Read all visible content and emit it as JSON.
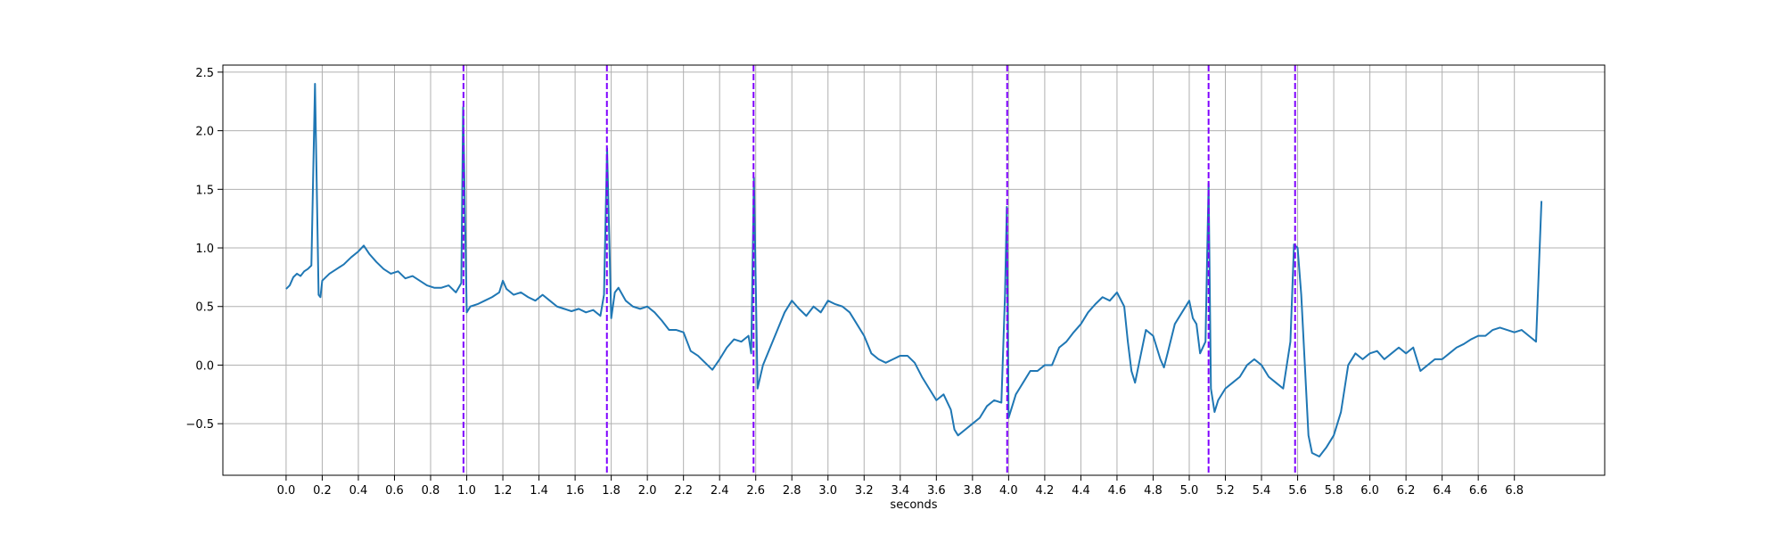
{
  "chart_data": {
    "type": "line",
    "xlabel": "seconds",
    "color": "#1f77b4",
    "grid": true,
    "xlim": [
      -0.35,
      7.3
    ],
    "ylim": [
      -0.94,
      2.56
    ],
    "xticks": [
      {
        "value": 0,
        "label": "0.0"
      },
      0.2,
      0.4,
      0.6,
      0.8,
      {
        "value": 1,
        "label": "1.0"
      },
      1.2,
      1.4,
      1.6,
      1.8,
      {
        "value": 2,
        "label": "2.0"
      },
      2.2,
      2.4,
      2.6,
      2.8,
      {
        "value": 3,
        "label": "3.0"
      },
      3.2,
      3.4,
      3.6,
      3.8,
      {
        "value": 4,
        "label": "4.0"
      },
      4.2,
      4.4,
      4.6,
      4.8,
      {
        "value": 5,
        "label": "5.0"
      },
      5.2,
      5.4,
      5.6,
      5.8,
      {
        "value": 6,
        "label": "6.0"
      },
      6.2,
      6.4,
      6.6,
      6.8
    ],
    "yticks": [
      {
        "value": -0.5,
        "label": "−0.5"
      },
      {
        "value": 0,
        "label": "0.0"
      },
      0.5,
      {
        "value": 1,
        "label": "1.0"
      },
      1.5,
      {
        "value": 2,
        "label": "2.0"
      },
      2.5
    ],
    "vlines": {
      "x": [
        0.982,
        1.776,
        2.588,
        3.992,
        5.107,
        5.586
      ],
      "color": "#7f00ff"
    },
    "x": [
      0,
      0.02,
      0.04,
      0.06,
      0.08,
      0.1,
      0.12,
      0.14,
      0.16,
      0.18,
      0.19,
      0.2,
      0.24,
      0.28,
      0.32,
      0.36,
      0.4,
      0.43,
      0.46,
      0.5,
      0.54,
      0.58,
      0.62,
      0.66,
      0.7,
      0.74,
      0.78,
      0.82,
      0.86,
      0.9,
      0.94,
      0.97,
      0.98,
      1,
      1.02,
      1.06,
      1.1,
      1.14,
      1.18,
      1.2,
      1.22,
      1.26,
      1.3,
      1.34,
      1.38,
      1.42,
      1.46,
      1.5,
      1.54,
      1.58,
      1.62,
      1.66,
      1.7,
      1.74,
      1.76,
      1.777,
      1.8,
      1.82,
      1.84,
      1.88,
      1.92,
      1.96,
      2,
      2.04,
      2.08,
      2.12,
      2.16,
      2.2,
      2.24,
      2.28,
      2.32,
      2.36,
      2.4,
      2.44,
      2.48,
      2.52,
      2.56,
      2.575,
      2.59,
      2.61,
      2.64,
      2.68,
      2.72,
      2.76,
      2.8,
      2.84,
      2.88,
      2.92,
      2.96,
      3,
      3.04,
      3.08,
      3.12,
      3.16,
      3.2,
      3.24,
      3.28,
      3.32,
      3.36,
      3.4,
      3.44,
      3.48,
      3.52,
      3.56,
      3.6,
      3.64,
      3.68,
      3.7,
      3.72,
      3.76,
      3.8,
      3.84,
      3.88,
      3.92,
      3.96,
      3.98,
      3.99,
      4,
      4.04,
      4.08,
      4.12,
      4.16,
      4.2,
      4.24,
      4.28,
      4.32,
      4.36,
      4.4,
      4.44,
      4.48,
      4.52,
      4.56,
      4.6,
      4.64,
      4.66,
      4.68,
      4.7,
      4.72,
      4.76,
      4.8,
      4.84,
      4.86,
      4.88,
      4.92,
      4.96,
      5,
      5.02,
      5.04,
      5.06,
      5.09,
      5.107,
      5.12,
      5.14,
      5.16,
      5.2,
      5.24,
      5.28,
      5.32,
      5.36,
      5.4,
      5.44,
      5.48,
      5.52,
      5.56,
      5.58,
      5.6,
      5.62,
      5.64,
      5.66,
      5.68,
      5.72,
      5.76,
      5.8,
      5.84,
      5.86,
      5.88,
      5.92,
      5.96,
      6,
      6.04,
      6.08,
      6.12,
      6.16,
      6.2,
      6.24,
      6.28,
      6.32,
      6.36,
      6.4,
      6.44,
      6.48,
      6.52,
      6.56,
      6.6,
      6.64,
      6.68,
      6.72,
      6.76,
      6.8,
      6.84,
      6.88,
      6.92,
      6.95
    ],
    "values": [
      0.65,
      0.68,
      0.75,
      0.78,
      0.76,
      0.8,
      0.82,
      0.85,
      2.4,
      0.6,
      0.58,
      0.72,
      0.78,
      0.82,
      0.86,
      0.92,
      0.97,
      1.02,
      0.95,
      0.88,
      0.82,
      0.78,
      0.8,
      0.74,
      0.76,
      0.72,
      0.68,
      0.66,
      0.66,
      0.68,
      0.62,
      0.7,
      2.2,
      0.45,
      0.5,
      0.52,
      0.55,
      0.58,
      0.62,
      0.72,
      0.65,
      0.6,
      0.62,
      0.58,
      0.55,
      0.6,
      0.55,
      0.5,
      0.48,
      0.46,
      0.48,
      0.45,
      0.47,
      0.42,
      0.6,
      1.85,
      0.4,
      0.62,
      0.66,
      0.55,
      0.5,
      0.48,
      0.5,
      0.45,
      0.38,
      0.3,
      0.3,
      0.28,
      0.12,
      0.08,
      0.02,
      -0.04,
      0.05,
      0.15,
      0.22,
      0.2,
      0.25,
      0.1,
      1.6,
      -0.2,
      0,
      0.15,
      0.3,
      0.45,
      0.55,
      0.48,
      0.42,
      0.5,
      0.45,
      0.55,
      0.52,
      0.5,
      0.45,
      0.35,
      0.25,
      0.1,
      0.05,
      0.02,
      0.05,
      0.08,
      0.08,
      0.02,
      -0.1,
      -0.2,
      -0.3,
      -0.25,
      -0.38,
      -0.55,
      -0.6,
      -0.55,
      -0.5,
      -0.45,
      -0.35,
      -0.3,
      -0.32,
      0.6,
      1.35,
      -0.45,
      -0.25,
      -0.15,
      -0.05,
      -0.05,
      0,
      0,
      0.15,
      0.2,
      0.28,
      0.35,
      0.45,
      0.52,
      0.58,
      0.55,
      0.62,
      0.5,
      0.2,
      -0.05,
      -0.15,
      0,
      0.3,
      0.25,
      0.05,
      -0.02,
      0.1,
      0.35,
      0.45,
      0.55,
      0.4,
      0.35,
      0.1,
      0.2,
      1.55,
      -0.2,
      -0.4,
      -0.3,
      -0.2,
      -0.15,
      -0.1,
      0,
      0.05,
      0,
      -0.1,
      -0.15,
      -0.2,
      0.2,
      1.03,
      1,
      0.6,
      0,
      -0.6,
      -0.75,
      -0.78,
      -0.7,
      -0.6,
      -0.4,
      -0.2,
      0,
      0.1,
      0.05,
      0.1,
      0.12,
      0.05,
      0.1,
      0.15,
      0.1,
      0.15,
      -0.05,
      0,
      0.05,
      0.05,
      0.1,
      0.15,
      0.18,
      0.22,
      0.25,
      0.25,
      0.3,
      0.32,
      0.3,
      0.28,
      0.3,
      0.25,
      0.2,
      1.4
    ]
  }
}
